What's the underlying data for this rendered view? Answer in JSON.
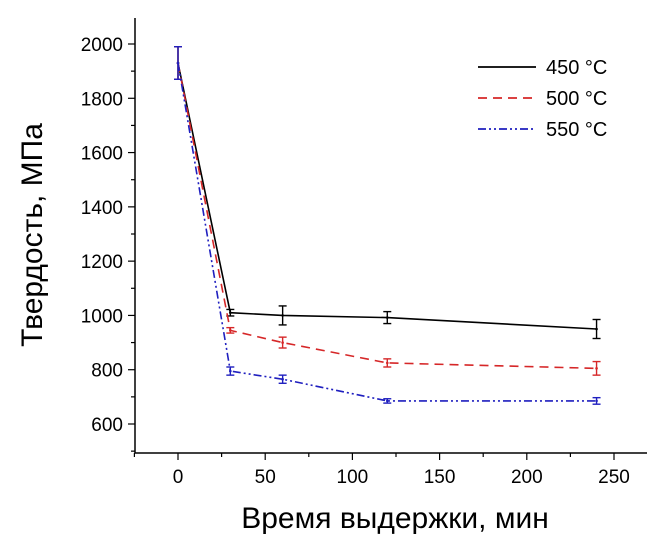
{
  "chart_data": {
    "type": "line",
    "xlabel": "Время выдержки, мин",
    "ylabel": "Твердость, МПа",
    "xlim": [
      -25,
      260
    ],
    "ylim": [
      500,
      2120
    ],
    "xticks": [
      0,
      50,
      100,
      150,
      200,
      250
    ],
    "yticks": [
      600,
      800,
      1000,
      1200,
      1400,
      1600,
      1800,
      2000
    ],
    "legend_position": "top-right",
    "grid": false,
    "series": [
      {
        "name": "450 °C",
        "color": "#000000",
        "dash": "solid",
        "x": [
          0,
          30,
          60,
          120,
          240
        ],
        "y": [
          1930,
          1010,
          1000,
          992,
          950
        ],
        "err": [
          60,
          12,
          35,
          22,
          35
        ]
      },
      {
        "name": "500 °C",
        "color": "#d62728",
        "dash": "dash",
        "x": [
          0,
          30,
          60,
          120,
          240
        ],
        "y": [
          1930,
          945,
          900,
          825,
          805
        ],
        "err": [
          60,
          10,
          20,
          15,
          25
        ]
      },
      {
        "name": "550 °C",
        "color": "#1f1fbf",
        "dash": "dashdotdot",
        "x": [
          0,
          30,
          60,
          120,
          240
        ],
        "y": [
          1930,
          795,
          765,
          685,
          685
        ],
        "err": [
          60,
          15,
          15,
          8,
          12
        ]
      }
    ]
  }
}
